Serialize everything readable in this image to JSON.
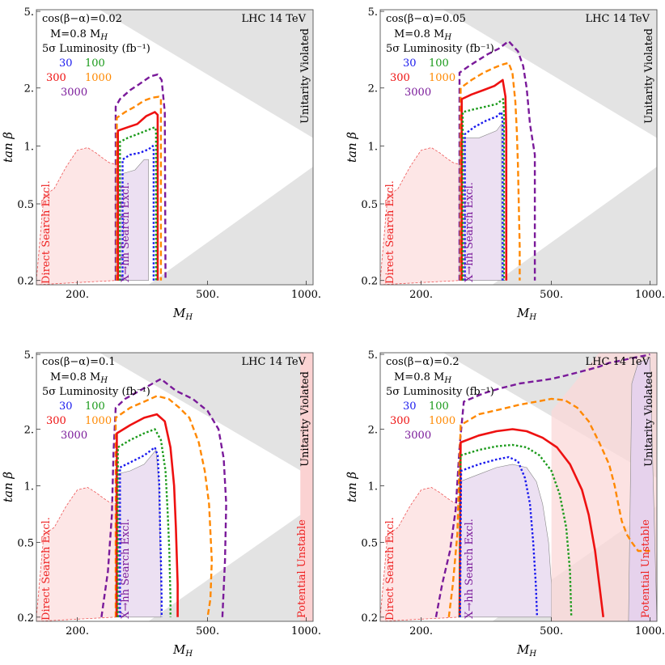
{
  "figure": {
    "energy_label": "LHC 14 TeV",
    "mass_label": "M=0.8 M",
    "mass_label_sub": "H",
    "lumi_label": "5σ Luminosity (fb⁻¹)",
    "region_labels": {
      "unitarity": "Unitarity Violated",
      "direct": "Direct Search Excl.",
      "xhh": "X→hh Search Excl.",
      "potential": "Potential Unstable"
    }
  },
  "chart_data": [
    {
      "type": "line",
      "title": "cos(β−α)=0.02",
      "xlabel": "M_H",
      "ylabel": "tan β",
      "xscale": "log",
      "yscale": "log",
      "xlim": [
        150,
        1050
      ],
      "ylim": [
        0.19,
        5.1
      ],
      "xticks": [
        "200.",
        "500.",
        "1000."
      ],
      "yticks": [
        "0.2",
        "0.5",
        "1.",
        "2.",
        "5."
      ],
      "legend": [
        {
          "lumi": "30",
          "color": "#1a1aee"
        },
        {
          "lumi": "100",
          "color": "#1a9a1a"
        },
        {
          "lumi": "300",
          "color": "#ee1111"
        },
        {
          "lumi": "1000",
          "color": "#ff8800"
        },
        {
          "lumi": "3000",
          "color": "#7a1a9a"
        }
      ],
      "has_potential_unstable": false,
      "series": [
        {
          "name": "3000",
          "x": [
            262,
            262,
            270,
            290,
            310,
            335,
            352,
            362,
            370,
            372
          ],
          "y": [
            0.2,
            1.6,
            1.75,
            1.95,
            2.1,
            2.3,
            2.35,
            2.2,
            1.5,
            0.2
          ]
        },
        {
          "name": "1000",
          "x": [
            264,
            264,
            280,
            300,
            320,
            338,
            355,
            360,
            360
          ],
          "y": [
            0.2,
            1.4,
            1.5,
            1.6,
            1.72,
            1.78,
            1.8,
            1.75,
            0.2
          ]
        },
        {
          "name": "300",
          "x": [
            266,
            266,
            285,
            305,
            325,
            345,
            352,
            352
          ],
          "y": [
            0.2,
            1.2,
            1.25,
            1.3,
            1.43,
            1.5,
            1.45,
            0.2
          ]
        },
        {
          "name": "100",
          "x": [
            270,
            270,
            285,
            305,
            325,
            345,
            348,
            348
          ],
          "y": [
            0.2,
            1.05,
            1.1,
            1.15,
            1.2,
            1.25,
            1.2,
            0.2
          ]
        },
        {
          "name": "30",
          "x": [
            275,
            275,
            290,
            310,
            330,
            340,
            342,
            342
          ],
          "y": [
            0.2,
            0.85,
            0.9,
            0.92,
            0.96,
            1.0,
            0.95,
            0.2
          ]
        }
      ]
    },
    {
      "type": "line",
      "title": "cos(β−α)=0.05",
      "xlabel": "M_H",
      "ylabel": "tan β",
      "xscale": "log",
      "yscale": "log",
      "xlim": [
        150,
        1050
      ],
      "ylim": [
        0.19,
        5.1
      ],
      "xticks": [
        "200.",
        "500.",
        "1000."
      ],
      "yticks": [
        "0.2",
        "0.5",
        "1.",
        "2.",
        "5."
      ],
      "legend": [
        {
          "lumi": "30",
          "color": "#1a1aee"
        },
        {
          "lumi": "100",
          "color": "#1a9a1a"
        },
        {
          "lumi": "300",
          "color": "#ee1111"
        },
        {
          "lumi": "1000",
          "color": "#ff8800"
        },
        {
          "lumi": "3000",
          "color": "#7a1a9a"
        }
      ],
      "has_potential_unstable": false,
      "series": [
        {
          "name": "3000",
          "x": [
            262,
            262,
            280,
            300,
            320,
            345,
            370,
            395,
            410,
            420,
            430,
            445,
            445
          ],
          "y": [
            0.2,
            2.4,
            2.6,
            2.8,
            3.0,
            3.2,
            3.5,
            3.1,
            2.6,
            2.0,
            1.3,
            0.9,
            0.2
          ]
        },
        {
          "name": "1000",
          "x": [
            264,
            264,
            285,
            310,
            335,
            355,
            370,
            380,
            388,
            392,
            395,
            400,
            400
          ],
          "y": [
            0.2,
            2.0,
            2.2,
            2.4,
            2.55,
            2.65,
            2.7,
            2.4,
            1.7,
            1.2,
            0.8,
            0.3,
            0.2
          ]
        },
        {
          "name": "300",
          "x": [
            266,
            266,
            285,
            310,
            335,
            355,
            362,
            364,
            364
          ],
          "y": [
            0.2,
            1.75,
            1.85,
            1.95,
            2.05,
            2.2,
            1.8,
            1.2,
            0.2
          ]
        },
        {
          "name": "100",
          "x": [
            268,
            268,
            290,
            315,
            340,
            356,
            358,
            358
          ],
          "y": [
            0.2,
            1.5,
            1.55,
            1.6,
            1.65,
            1.75,
            1.5,
            0.2
          ]
        },
        {
          "name": "30",
          "x": [
            272,
            272,
            290,
            315,
            340,
            352,
            355,
            355
          ],
          "y": [
            0.2,
            1.15,
            1.25,
            1.35,
            1.42,
            1.5,
            1.3,
            0.2
          ]
        }
      ]
    },
    {
      "type": "line",
      "title": "cos(β−α)=0.1",
      "xlabel": "M_H",
      "ylabel": "tan β",
      "xscale": "log",
      "yscale": "log",
      "xlim": [
        150,
        1050
      ],
      "ylim": [
        0.19,
        5.1
      ],
      "xticks": [
        "200.",
        "500.",
        "1000."
      ],
      "yticks": [
        "0.2",
        "0.5",
        "1.",
        "2.",
        "5."
      ],
      "legend": [
        {
          "lumi": "30",
          "color": "#1a1aee"
        },
        {
          "lumi": "100",
          "color": "#1a9a1a"
        },
        {
          "lumi": "300",
          "color": "#ee1111"
        },
        {
          "lumi": "1000",
          "color": "#ff8800"
        },
        {
          "lumi": "3000",
          "color": "#7a1a9a"
        }
      ],
      "has_potential_unstable": true,
      "series": [
        {
          "name": "3000",
          "x": [
            237,
            248,
            255,
            258,
            262,
            280,
            310,
            340,
            360,
            400,
            450,
            500,
            540,
            560,
            570,
            565,
            555
          ],
          "y": [
            0.2,
            0.35,
            0.7,
            1.5,
            2.6,
            2.9,
            3.2,
            3.5,
            3.7,
            3.2,
            2.9,
            2.5,
            2.0,
            1.4,
            0.8,
            0.4,
            0.2
          ]
        },
        {
          "name": "1000",
          "x": [
            262,
            262,
            290,
            320,
            350,
            380,
            410,
            440,
            470,
            490,
            505,
            515,
            510,
            500
          ],
          "y": [
            0.2,
            2.3,
            2.6,
            2.8,
            3.0,
            2.9,
            2.6,
            2.3,
            1.7,
            1.2,
            0.8,
            0.4,
            0.25,
            0.2
          ]
        },
        {
          "name": "300",
          "x": [
            264,
            264,
            290,
            320,
            350,
            370,
            385,
            395,
            400,
            405,
            405
          ],
          "y": [
            0.2,
            1.9,
            2.1,
            2.3,
            2.4,
            2.2,
            1.6,
            1.0,
            0.6,
            0.3,
            0.2
          ]
        },
        {
          "name": "100",
          "x": [
            266,
            266,
            290,
            320,
            345,
            360,
            372,
            378,
            382,
            385,
            385
          ],
          "y": [
            0.2,
            1.6,
            1.75,
            1.9,
            2.0,
            1.75,
            1.2,
            0.7,
            0.45,
            0.25,
            0.2
          ]
        },
        {
          "name": "30",
          "x": [
            270,
            270,
            295,
            320,
            345,
            352,
            356,
            358,
            360,
            362,
            362
          ],
          "y": [
            0.2,
            1.25,
            1.35,
            1.45,
            1.6,
            1.45,
            1.0,
            0.6,
            0.4,
            0.25,
            0.2
          ]
        }
      ]
    },
    {
      "type": "line",
      "title": "cos(β−α)=0.2",
      "xlabel": "M_H",
      "ylabel": "tan β",
      "xscale": "log",
      "yscale": "log",
      "xlim": [
        150,
        1050
      ],
      "ylim": [
        0.19,
        5.1
      ],
      "xticks": [
        "200.",
        "500.",
        "1000."
      ],
      "yticks": [
        "0.2",
        "0.5",
        "1.",
        "2.",
        "5."
      ],
      "legend": [
        {
          "lumi": "30",
          "color": "#1a1aee"
        },
        {
          "lumi": "100",
          "color": "#1a9a1a"
        },
        {
          "lumi": "300",
          "color": "#ee1111"
        },
        {
          "lumi": "1000",
          "color": "#ff8800"
        },
        {
          "lumi": "3000",
          "color": "#7a1a9a"
        }
      ],
      "has_potential_unstable": true,
      "series": [
        {
          "name": "3000",
          "x": [
            222,
            232,
            245,
            255,
            262,
            270,
            310,
            350,
            400,
            450,
            500,
            550,
            600,
            650,
            700,
            750,
            800,
            870,
            920,
            950,
            980,
            1000
          ],
          "y": [
            0.2,
            0.3,
            0.45,
            0.75,
            1.6,
            2.8,
            3.1,
            3.3,
            3.5,
            3.6,
            3.7,
            3.85,
            4.0,
            4.15,
            4.3,
            4.5,
            4.6,
            4.75,
            4.85,
            4.9,
            4.95,
            5.0
          ]
        },
        {
          "name": "1000",
          "x": [
            243,
            250,
            258,
            264,
            300,
            350,
            400,
            450,
            500,
            550,
            600,
            650,
            700,
            750,
            780,
            800,
            820,
            850,
            880,
            920,
            960,
            1000
          ],
          "y": [
            0.2,
            0.3,
            0.55,
            2.1,
            2.4,
            2.55,
            2.7,
            2.8,
            2.9,
            2.85,
            2.6,
            2.2,
            1.7,
            1.3,
            1.0,
            0.8,
            0.65,
            0.55,
            0.5,
            0.45,
            0.45,
            0.45
          ]
        },
        {
          "name": "300",
          "x": [
            262,
            264,
            300,
            340,
            380,
            420,
            470,
            520,
            570,
            620,
            650,
            680,
            700,
            720
          ],
          "y": [
            0.2,
            1.7,
            1.85,
            1.95,
            2.0,
            1.95,
            1.8,
            1.6,
            1.3,
            0.95,
            0.7,
            0.45,
            0.3,
            0.2
          ]
        },
        {
          "name": "100",
          "x": [
            262,
            264,
            300,
            340,
            380,
            420,
            460,
            500,
            530,
            555,
            570,
            575
          ],
          "y": [
            0.2,
            1.45,
            1.55,
            1.62,
            1.65,
            1.6,
            1.45,
            1.2,
            0.9,
            0.6,
            0.35,
            0.2
          ]
        },
        {
          "name": "30",
          "x": [
            263,
            265,
            300,
            340,
            370,
            395,
            415,
            430,
            440,
            448,
            452
          ],
          "y": [
            0.2,
            1.2,
            1.3,
            1.38,
            1.42,
            1.35,
            1.1,
            0.8,
            0.5,
            0.3,
            0.2
          ]
        }
      ]
    }
  ]
}
